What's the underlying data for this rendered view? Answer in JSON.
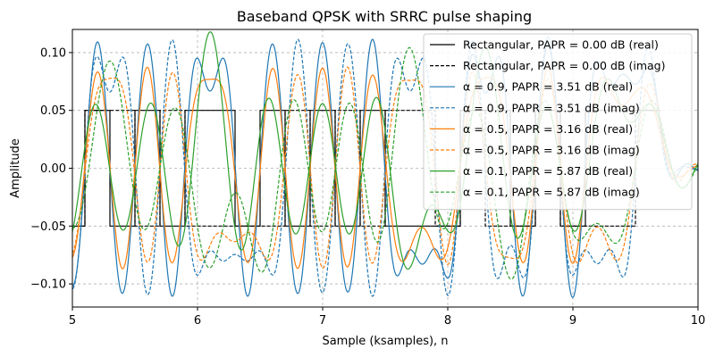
{
  "chart_data": {
    "type": "line",
    "title": "Baseband QPSK with SRRC pulse shaping",
    "xlabel": "Sample (ksamples), n",
    "ylabel": "Amplitude",
    "xlim": [
      5,
      10
    ],
    "ylim": [
      -0.12,
      0.12
    ],
    "xticks": [
      5,
      6,
      7,
      8,
      9,
      10
    ],
    "yticks": [
      -0.1,
      -0.05,
      0.0,
      0.05,
      0.1
    ],
    "ytick_labels": [
      "−0.10",
      "−0.05",
      "0.00",
      "0.05",
      "0.10"
    ],
    "grid": true,
    "legend_position": "top-right",
    "symbol_period_ksamples": 0.2,
    "first_symbol_start": 4.9,
    "symbol_amplitude": 0.05,
    "series": [
      {
        "name": "Rectangular, PAPR = 0.00 dB (real)",
        "color": "#000000",
        "dash": "solid",
        "alpha": null,
        "part": "real",
        "symbols": [
          -1,
          1,
          -1,
          1,
          -1,
          1,
          1,
          -1,
          1,
          -1,
          1,
          -1,
          1,
          -1,
          -1,
          -1,
          1,
          1,
          -1,
          1,
          -1,
          1,
          1,
          1
        ]
      },
      {
        "name": "Rectangular, PAPR = 0.00 dB (imag)",
        "color": "#000000",
        "dash": "dashed",
        "alpha": null,
        "part": "imag",
        "symbols": [
          -1,
          1,
          1,
          -1,
          1,
          -1,
          -1,
          -1,
          -1,
          1,
          -1,
          1,
          -1,
          1,
          1,
          -1,
          1,
          -1,
          -1,
          1,
          -1,
          -1,
          -1,
          1
        ]
      },
      {
        "name": "α = 0.9, PAPR = 3.51 dB (real)",
        "color": "#1f77b4",
        "dash": "solid",
        "alpha": 0.9,
        "part": "real",
        "symbols": [
          -1,
          1,
          -1,
          1,
          -1,
          1,
          1,
          -1,
          1,
          -1,
          1,
          -1,
          1,
          -1,
          -1,
          -1,
          1,
          1,
          -1,
          1,
          -1,
          1,
          1,
          1
        ]
      },
      {
        "name": "α = 0.9, PAPR = 3.51 dB (imag)",
        "color": "#1f77b4",
        "dash": "dashed",
        "alpha": 0.9,
        "part": "imag",
        "symbols": [
          -1,
          1,
          1,
          -1,
          1,
          -1,
          -1,
          -1,
          -1,
          1,
          -1,
          1,
          -1,
          1,
          1,
          -1,
          1,
          -1,
          -1,
          1,
          -1,
          -1,
          -1,
          1
        ]
      },
      {
        "name": "α = 0.5, PAPR = 3.16 dB (real)",
        "color": "#ff7f0e",
        "dash": "solid",
        "alpha": 0.5,
        "part": "real",
        "symbols": [
          -1,
          1,
          -1,
          1,
          -1,
          1,
          1,
          -1,
          1,
          -1,
          1,
          -1,
          1,
          -1,
          -1,
          -1,
          1,
          1,
          -1,
          1,
          -1,
          1,
          1,
          1
        ]
      },
      {
        "name": "α = 0.5, PAPR = 3.16 dB (imag)",
        "color": "#ff7f0e",
        "dash": "dashed",
        "alpha": 0.5,
        "part": "imag",
        "symbols": [
          -1,
          1,
          1,
          -1,
          1,
          -1,
          -1,
          -1,
          -1,
          1,
          -1,
          1,
          -1,
          1,
          1,
          -1,
          1,
          -1,
          -1,
          1,
          -1,
          -1,
          -1,
          1
        ]
      },
      {
        "name": "α = 0.1, PAPR = 5.87 dB (real)",
        "color": "#2ca02c",
        "dash": "solid",
        "alpha": 0.1,
        "part": "real",
        "symbols": [
          -1,
          1,
          -1,
          1,
          -1,
          1,
          1,
          -1,
          1,
          -1,
          1,
          -1,
          1,
          -1,
          -1,
          -1,
          1,
          1,
          -1,
          1,
          -1,
          1,
          1,
          1
        ]
      },
      {
        "name": "α = 0.1, PAPR = 5.87 dB (imag)",
        "color": "#2ca02c",
        "dash": "dashed",
        "alpha": 0.1,
        "part": "imag",
        "symbols": [
          -1,
          1,
          1,
          -1,
          1,
          -1,
          -1,
          -1,
          -1,
          1,
          -1,
          1,
          -1,
          1,
          1,
          -1,
          1,
          -1,
          -1,
          1,
          -1,
          -1,
          -1,
          1
        ]
      }
    ]
  }
}
